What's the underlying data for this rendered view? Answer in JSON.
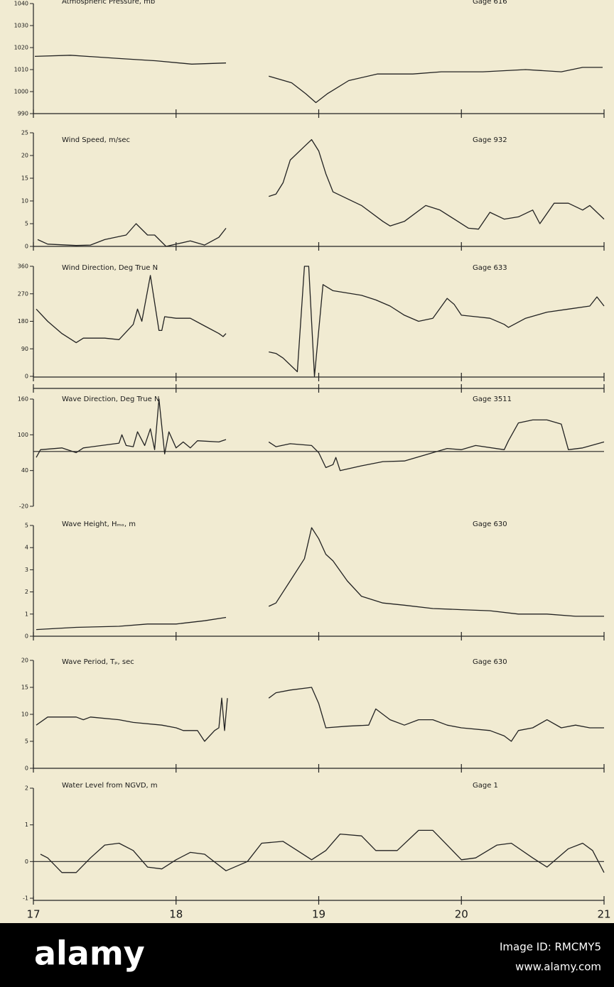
{
  "chart_data": [
    {
      "type": "line",
      "title": "Atmospheric Pressure, mb",
      "annotation": "Gage 616",
      "xlim": [
        17,
        21
      ],
      "xticks": [
        17,
        18,
        19,
        20,
        21
      ],
      "ylim": [
        990,
        1040
      ],
      "yticks": [
        990,
        1000,
        1010,
        1020,
        1030,
        1040
      ],
      "color": "#222222",
      "x": [
        17.01,
        17.26,
        17.61,
        17.86,
        18.11,
        18.35,
        null,
        18.65,
        18.81,
        18.91,
        18.98,
        19.06,
        19.21,
        19.41,
        19.66,
        19.86,
        20.15,
        20.45,
        20.7,
        20.85,
        20.99
      ],
      "values": [
        1016,
        1016.5,
        1015,
        1014,
        1012.5,
        1013,
        null,
        1007,
        1004,
        999,
        995,
        999,
        1005,
        1008,
        1008,
        1009,
        1009,
        1010,
        1009,
        1011,
        1011
      ]
    },
    {
      "type": "line",
      "title": "Wind Speed, m/sec",
      "annotation": "Gage 932",
      "xlim": [
        17,
        21
      ],
      "xticks": [
        17,
        18,
        19,
        20,
        21
      ],
      "ylim": [
        0,
        25
      ],
      "yticks": [
        0,
        5,
        10,
        15,
        20,
        25
      ],
      "color": "#222222",
      "x": [
        17.03,
        17.1,
        17.3,
        17.4,
        17.5,
        17.65,
        17.72,
        17.8,
        17.85,
        17.93,
        18.0,
        18.1,
        18.2,
        18.3,
        18.35,
        null,
        18.65,
        18.7,
        18.75,
        18.8,
        18.9,
        18.95,
        19.0,
        19.05,
        19.1,
        19.2,
        19.3,
        19.45,
        19.5,
        19.6,
        19.75,
        19.85,
        19.95,
        20.05,
        20.12,
        20.2,
        20.3,
        20.4,
        20.5,
        20.55,
        20.65,
        20.75,
        20.85,
        20.9,
        21.0
      ],
      "values": [
        1.5,
        0.5,
        0.2,
        0.3,
        1.5,
        2.5,
        5,
        2.5,
        2.5,
        0,
        0.5,
        1.2,
        0.3,
        2,
        4,
        null,
        11,
        11.5,
        14,
        19,
        22,
        23.5,
        21,
        16,
        12,
        10.5,
        9,
        5.5,
        4.5,
        5.5,
        9,
        8,
        6,
        4,
        3.8,
        7.5,
        6,
        6.5,
        8,
        5,
        9.5,
        9.5,
        8,
        9,
        6
      ]
    },
    {
      "type": "line",
      "title": "Wind Direction, Deg True N",
      "annotation": "Gage 633",
      "xlim": [
        17,
        21
      ],
      "xticks": [
        17,
        18,
        19,
        20,
        21
      ],
      "ylim": [
        0,
        360
      ],
      "yticks": [
        0,
        90,
        180,
        270,
        360
      ],
      "color": "#222222",
      "x": [
        17.02,
        17.1,
        17.2,
        17.3,
        17.35,
        17.5,
        17.6,
        17.7,
        17.73,
        17.76,
        17.82,
        17.88,
        17.9,
        17.92,
        18.0,
        18.1,
        18.2,
        18.3,
        18.33,
        18.35,
        null,
        18.65,
        18.7,
        18.75,
        18.85,
        18.9,
        18.93,
        18.97,
        19.03,
        19.1,
        19.3,
        19.4,
        19.5,
        19.6,
        19.7,
        19.8,
        19.9,
        19.95,
        20.0,
        20.1,
        20.2,
        20.3,
        20.33,
        20.45,
        20.6,
        20.75,
        20.9,
        20.95,
        21.0
      ],
      "values": [
        220,
        180,
        140,
        110,
        125,
        125,
        120,
        170,
        220,
        180,
        330,
        150,
        150,
        195,
        190,
        190,
        165,
        140,
        130,
        140,
        null,
        80,
        75,
        60,
        15,
        360,
        360,
        0,
        300,
        280,
        265,
        250,
        230,
        200,
        180,
        190,
        255,
        235,
        200,
        195,
        190,
        170,
        160,
        190,
        210,
        220,
        230,
        260,
        230
      ]
    },
    {
      "type": "line",
      "title": "Wave Direction, Deg True N",
      "annotation": "Gage 3511",
      "xlim": [
        17,
        21
      ],
      "xticks": [
        17,
        18,
        19,
        20,
        21
      ],
      "ylim": [
        -20,
        160
      ],
      "yticks": [
        -20,
        40,
        100,
        160
      ],
      "color": "#222222",
      "hline": 72,
      "x": [
        17.02,
        17.05,
        17.2,
        17.3,
        17.35,
        17.6,
        17.62,
        17.65,
        17.7,
        17.73,
        17.78,
        17.82,
        17.85,
        17.88,
        17.92,
        17.95,
        18.0,
        18.05,
        18.1,
        18.15,
        18.3,
        18.35,
        null,
        18.65,
        18.7,
        18.8,
        18.95,
        19.0,
        19.05,
        19.1,
        19.12,
        19.15,
        19.3,
        19.45,
        19.6,
        19.8,
        19.9,
        20.0,
        20.1,
        20.3,
        20.33,
        20.4,
        20.5,
        20.6,
        20.7,
        20.75,
        20.85,
        21.0
      ],
      "values": [
        62,
        75,
        78,
        70,
        78,
        86,
        100,
        82,
        80,
        105,
        82,
        110,
        75,
        160,
        68,
        105,
        78,
        88,
        78,
        90,
        88,
        92,
        null,
        88,
        80,
        85,
        82,
        70,
        45,
        50,
        62,
        40,
        48,
        55,
        56,
        70,
        77,
        75,
        82,
        75,
        90,
        120,
        125,
        125,
        118,
        75,
        78,
        88
      ]
    },
    {
      "type": "line",
      "title": "Wave Height, Hₘₒ, m",
      "annotation": "Gage 630",
      "xlim": [
        17,
        21
      ],
      "xticks": [
        17,
        18,
        19,
        20,
        21
      ],
      "ylim": [
        0,
        5
      ],
      "yticks": [
        0,
        1,
        2,
        3,
        4,
        5
      ],
      "color": "#222222",
      "x": [
        17.02,
        17.3,
        17.6,
        17.8,
        18.0,
        18.2,
        18.35,
        null,
        18.65,
        18.7,
        18.8,
        18.9,
        18.95,
        19.0,
        19.05,
        19.1,
        19.2,
        19.3,
        19.45,
        19.6,
        19.8,
        20.0,
        20.2,
        20.4,
        20.6,
        20.8,
        21.0
      ],
      "values": [
        0.3,
        0.4,
        0.45,
        0.55,
        0.55,
        0.7,
        0.85,
        null,
        1.35,
        1.5,
        2.5,
        3.5,
        4.9,
        4.4,
        3.7,
        3.4,
        2.5,
        1.8,
        1.5,
        1.4,
        1.25,
        1.2,
        1.15,
        1.0,
        1.0,
        0.9,
        0.9
      ]
    },
    {
      "type": "line",
      "title": "Wave Period, Tₚ, sec",
      "annotation": "Gage 630",
      "xlim": [
        17,
        21
      ],
      "xticks": [
        17,
        18,
        19,
        20,
        21
      ],
      "ylim": [
        0,
        20
      ],
      "yticks": [
        0,
        5,
        10,
        15,
        20
      ],
      "color": "#222222",
      "x": [
        17.02,
        17.1,
        17.3,
        17.35,
        17.4,
        17.6,
        17.7,
        17.9,
        18.0,
        18.05,
        18.15,
        18.2,
        18.27,
        18.3,
        18.32,
        18.34,
        18.36,
        null,
        18.65,
        18.7,
        18.8,
        18.95,
        19.0,
        19.05,
        19.2,
        19.35,
        19.4,
        19.5,
        19.6,
        19.7,
        19.8,
        19.9,
        20.0,
        20.2,
        20.3,
        20.35,
        20.4,
        20.5,
        20.6,
        20.7,
        20.8,
        20.9,
        21.0
      ],
      "values": [
        8,
        9.5,
        9.5,
        9,
        9.5,
        9,
        8.5,
        8,
        7.5,
        7,
        7,
        5,
        7,
        7.5,
        13,
        7,
        13,
        null,
        13,
        14,
        14.5,
        15,
        12,
        7.5,
        7.8,
        8,
        11,
        9,
        8,
        9,
        9,
        8,
        7.5,
        7,
        6,
        5,
        7,
        7.5,
        9,
        7.5,
        8,
        7.5,
        7.5
      ]
    },
    {
      "type": "line",
      "title": "Water Level from NGVD, m",
      "annotation": "Gage 1",
      "xlim": [
        17,
        21
      ],
      "xticks": [
        17,
        18,
        19,
        20,
        21
      ],
      "xtick_labels": true,
      "ylim": [
        -1,
        2
      ],
      "yticks": [
        -1,
        0,
        1,
        2
      ],
      "color": "#222222",
      "hline": 0,
      "x": [
        17.05,
        17.1,
        17.2,
        17.3,
        17.4,
        17.5,
        17.6,
        17.7,
        17.8,
        17.9,
        18.0,
        18.1,
        18.2,
        18.35,
        18.5,
        18.6,
        18.75,
        18.85,
        18.95,
        19.05,
        19.15,
        19.3,
        19.4,
        19.55,
        19.7,
        19.8,
        19.9,
        20.0,
        20.1,
        20.25,
        20.35,
        20.5,
        20.6,
        20.75,
        20.85,
        20.92,
        21.0
      ],
      "values": [
        0.2,
        0.1,
        -0.3,
        -0.3,
        0.1,
        0.45,
        0.5,
        0.3,
        -0.15,
        -0.2,
        0.05,
        0.25,
        0.2,
        -0.25,
        0,
        0.5,
        0.55,
        0.3,
        0.05,
        0.3,
        0.75,
        0.7,
        0.3,
        0.3,
        0.85,
        0.85,
        0.45,
        0.05,
        0.1,
        0.45,
        0.5,
        0.1,
        -0.15,
        0.35,
        0.5,
        0.3,
        -0.3
      ]
    }
  ],
  "footer": {
    "brand": "alamy",
    "image_id": "Image ID: RMCMY5",
    "url": "www.alamy.com"
  }
}
